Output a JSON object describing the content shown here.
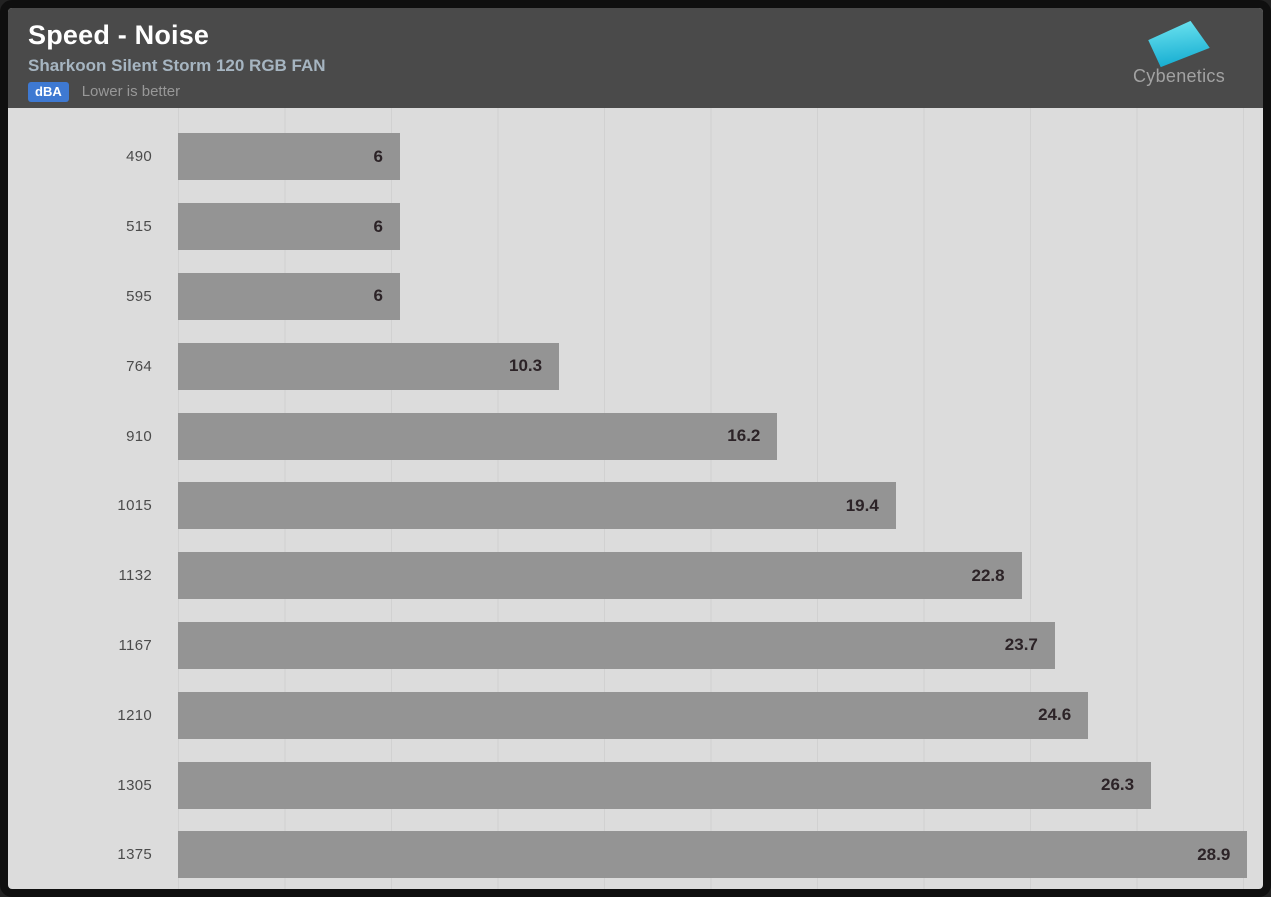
{
  "header": {
    "title": "Speed - Noise",
    "subtitle": "Sharkoon Silent Storm 120 RGB FAN",
    "unit_badge": "dBA",
    "note": "Lower is better"
  },
  "logo": {
    "text": "Cybenetics"
  },
  "colors": {
    "header_bg": "#4a4a4a",
    "chart_bg": "#dcdcdc",
    "grid_line": "#d1d1d1",
    "bar": "#949494",
    "badge_bg": "#3e79d2",
    "title": "#ffffff",
    "subtitle": "#a6b5c1",
    "note": "#989898",
    "category_label": "#4b4b4b",
    "value_label": "#2c2327",
    "logo_cyan_light": "#6ee4f0",
    "logo_cyan_dark": "#17aed2"
  },
  "chart_data": {
    "type": "bar",
    "orientation": "horizontal",
    "title": "Speed - Noise",
    "subtitle": "Sharkoon Silent Storm 120 RGB FAN",
    "unit": "dBA",
    "note": "Lower is better",
    "categories": [
      "490",
      "515",
      "595",
      "764",
      "910",
      "1015",
      "1132",
      "1167",
      "1210",
      "1305",
      "1375"
    ],
    "values": [
      6,
      6,
      6,
      10.3,
      16.2,
      19.4,
      22.8,
      23.7,
      24.6,
      26.3,
      28.9
    ],
    "value_labels": [
      "6",
      "6",
      "6",
      "10.3",
      "16.2",
      "19.4",
      "22.8",
      "23.7",
      "24.6",
      "26.3",
      "28.9"
    ],
    "xlim": [
      0,
      29.6
    ],
    "grid": "vertical-lines",
    "legend": "none",
    "value_label_position": "inside-end"
  }
}
